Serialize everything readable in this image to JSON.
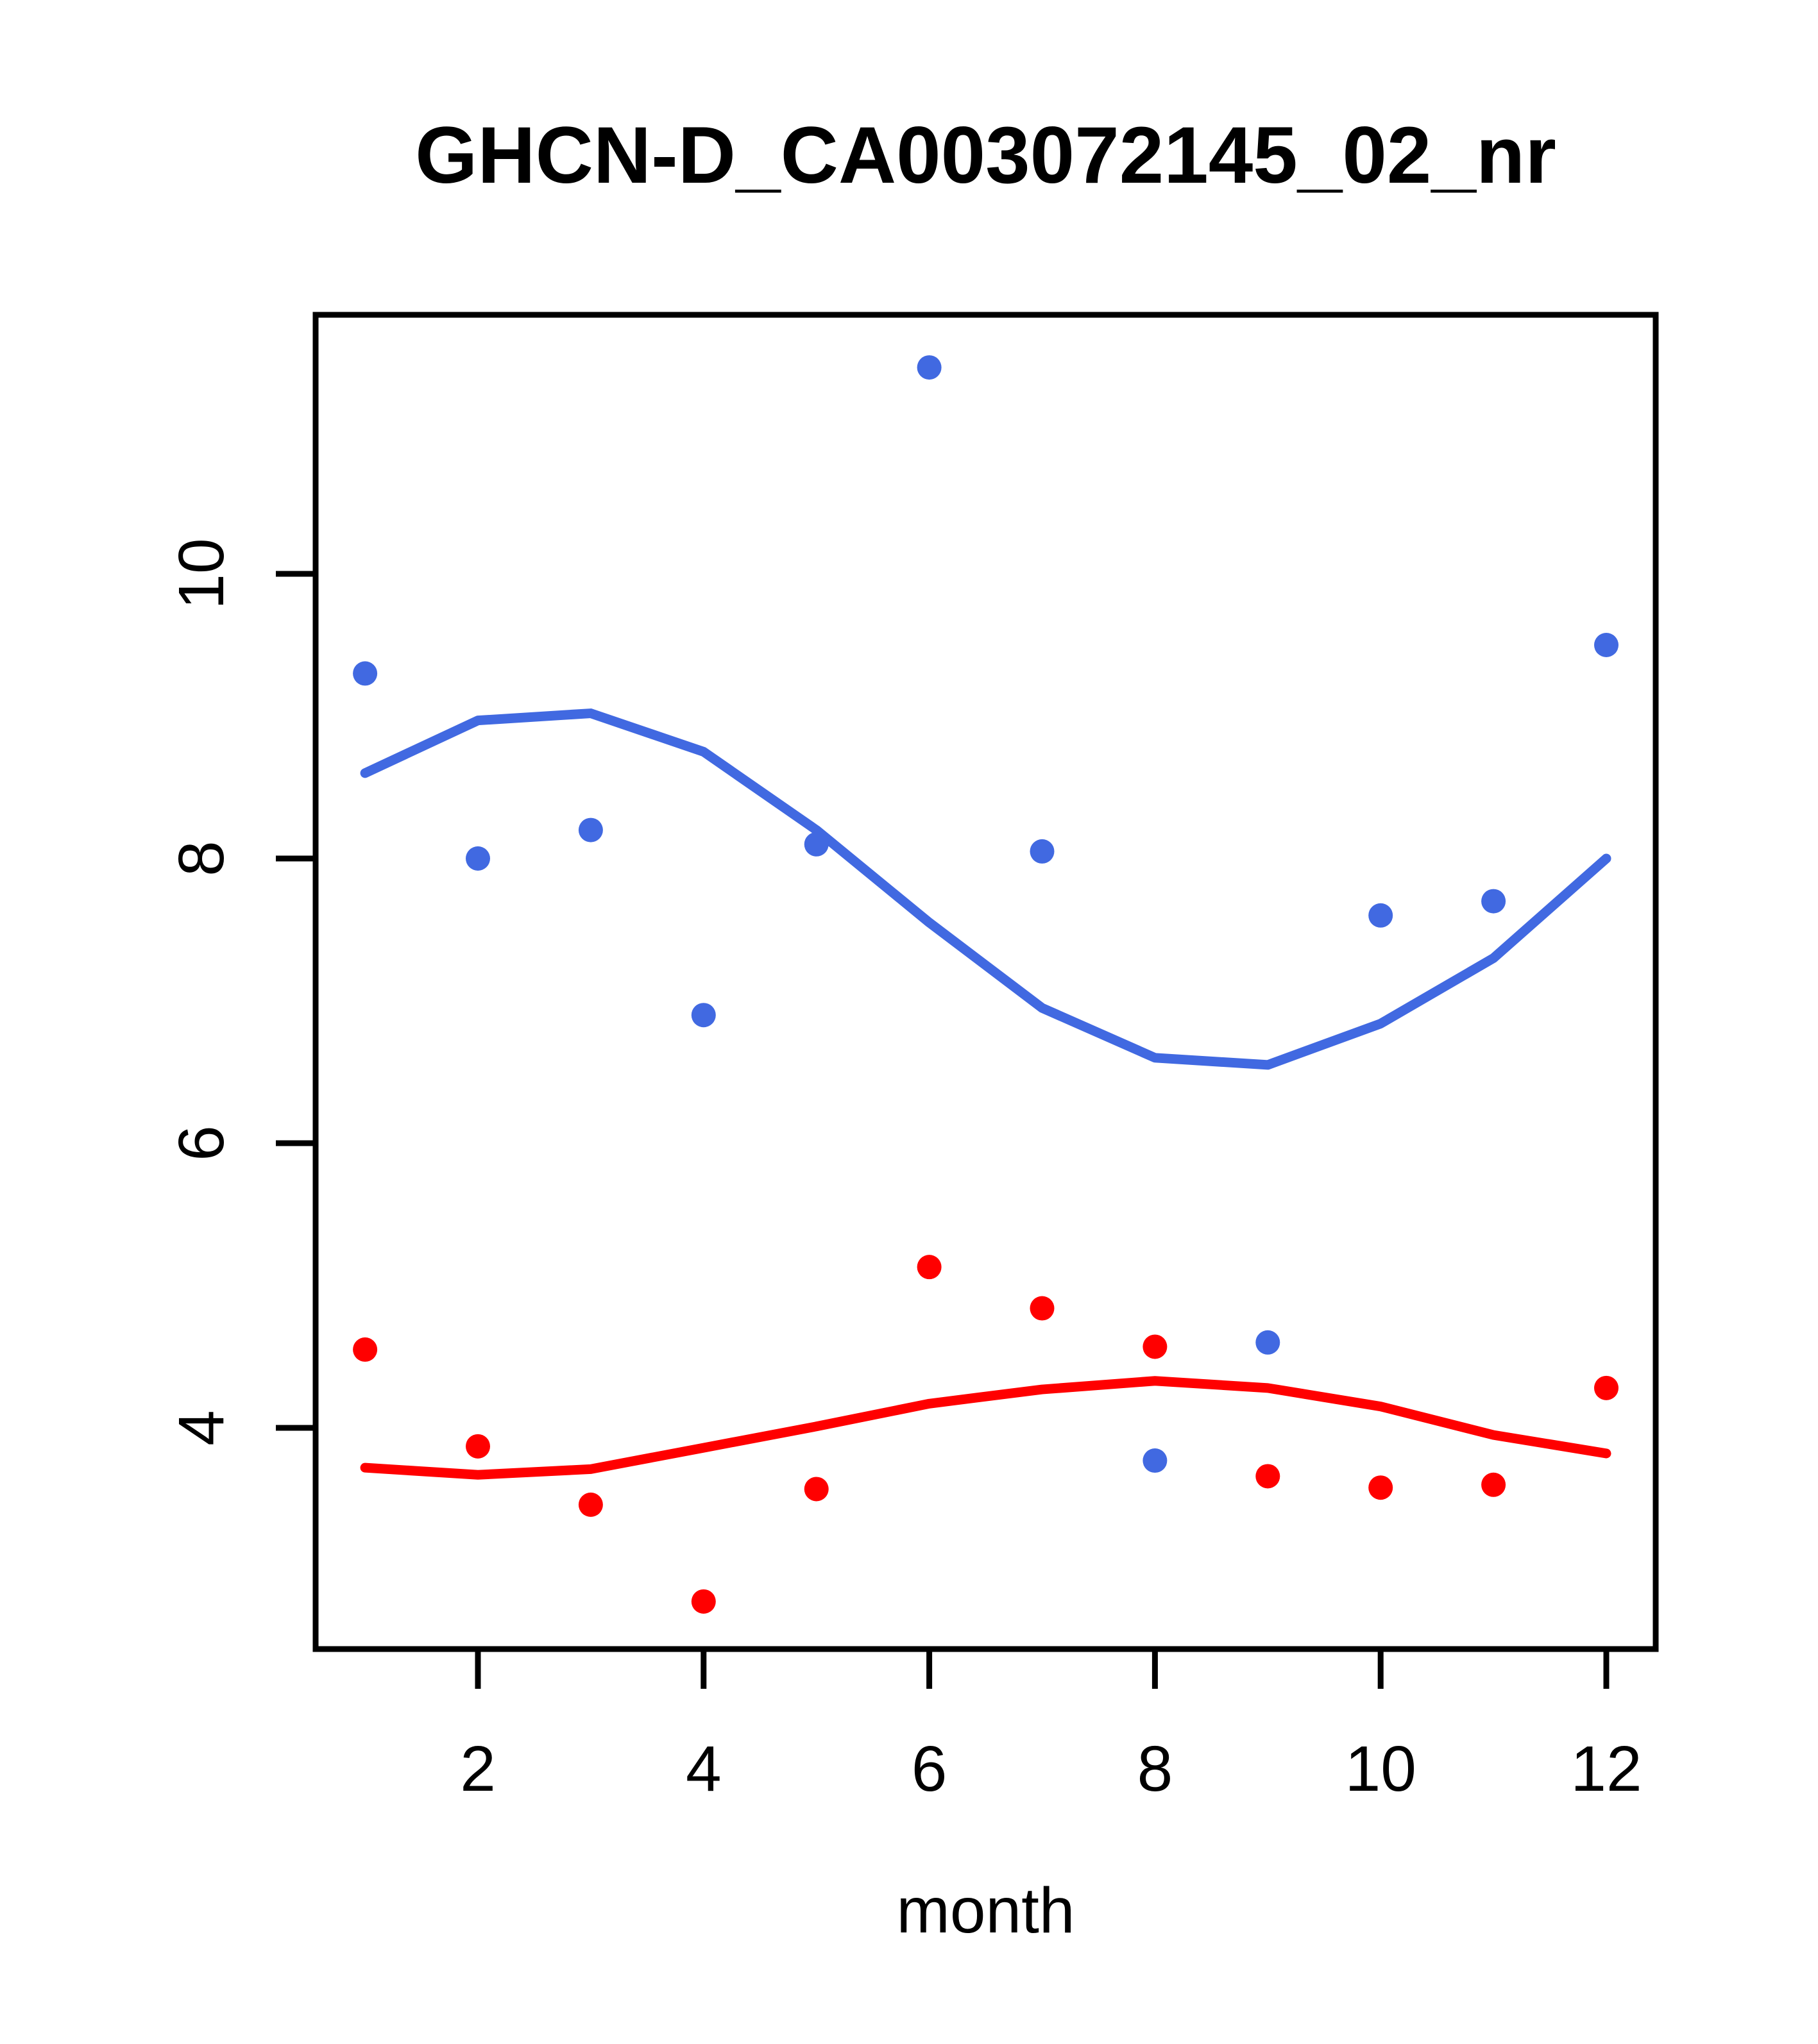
{
  "chart_data": {
    "type": "scatter",
    "title": "GHCN-D_CA003072145_02_nr",
    "xlabel": "month",
    "ylabel": "",
    "xlim": [
      0.56,
      12.44
    ],
    "ylim": [
      2.45,
      11.82
    ],
    "x_ticks": [
      "2",
      "4",
      "6",
      "8",
      "10",
      "12"
    ],
    "x_tick_values": [
      2,
      4,
      6,
      8,
      10,
      12
    ],
    "y_ticks": [
      "4",
      "6",
      "8",
      "10"
    ],
    "y_tick_values": [
      4,
      6,
      8,
      10
    ],
    "months": [
      1,
      2,
      3,
      4,
      5,
      6,
      7,
      8,
      9,
      10,
      11,
      12
    ],
    "grid": false,
    "legend": "none",
    "series": [
      {
        "name": "blue-points",
        "kind": "points",
        "color": "#4169E1",
        "values": [
          9.3,
          8.0,
          8.2,
          6.9,
          8.1,
          11.45,
          8.05,
          3.77,
          4.6,
          7.6,
          7.7,
          9.5
        ]
      },
      {
        "name": "red-points",
        "kind": "points",
        "color": "#FF0000",
        "values": [
          4.55,
          3.87,
          3.46,
          2.78,
          3.57,
          5.13,
          4.84,
          4.57,
          3.66,
          3.58,
          3.6,
          4.28
        ]
      },
      {
        "name": "blue-loess-line",
        "kind": "line",
        "color": "#4169E1",
        "values": [
          8.6,
          8.97,
          9.02,
          8.75,
          8.2,
          7.55,
          6.95,
          6.6,
          6.55,
          6.84,
          7.3,
          8.0
        ]
      },
      {
        "name": "red-loess-line",
        "kind": "line",
        "color": "#FF0000",
        "values": [
          3.72,
          3.67,
          3.71,
          3.86,
          4.01,
          4.17,
          4.27,
          4.33,
          4.28,
          4.15,
          3.95,
          3.82
        ]
      }
    ],
    "colors": {
      "blue_series": "#4169E1",
      "red_series": "#FF0000",
      "axis": "#000000",
      "background": "#FFFFFF"
    }
  }
}
